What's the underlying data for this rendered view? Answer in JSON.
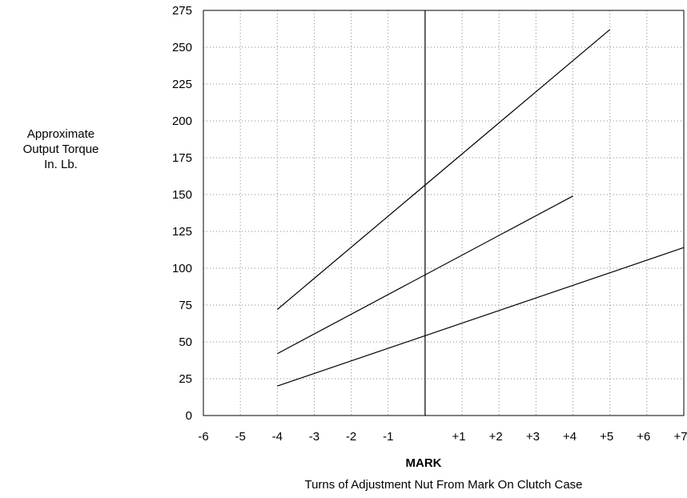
{
  "chart_data": {
    "type": "line",
    "title": "",
    "ylabel_lines": [
      "Approximate",
      "Output Torque",
      "In. Lb."
    ],
    "xlabel_top": "MARK",
    "xlabel": "Turns of Adjustment Nut From Mark On Clutch Case",
    "xlim": [
      -6,
      7
    ],
    "ylim": [
      0,
      275
    ],
    "x_ticks": [
      -6,
      -5,
      -4,
      -3,
      -2,
      -1,
      0,
      1,
      2,
      3,
      4,
      5,
      6,
      7
    ],
    "x_tick_labels": [
      "-6",
      "-5",
      "-4",
      "-3",
      "-2",
      "-1",
      "",
      "+1",
      "+2",
      "+3",
      "+4",
      "+5",
      "+6",
      "+7"
    ],
    "y_ticks": [
      0,
      25,
      50,
      75,
      100,
      125,
      150,
      175,
      200,
      225,
      250,
      275
    ],
    "y_tick_labels": [
      "0",
      "25",
      "50",
      "75",
      "100",
      "125",
      "150",
      "175",
      "200",
      "225",
      "250",
      "275"
    ],
    "grid": true,
    "grid_style": "dotted",
    "mark_x": 0,
    "series": [
      {
        "x": [
          -4,
          5
        ],
        "y": [
          72,
          262
        ]
      },
      {
        "x": [
          -4,
          4
        ],
        "y": [
          42,
          149
        ]
      },
      {
        "x": [
          -4,
          7
        ],
        "y": [
          20,
          114
        ]
      }
    ]
  }
}
